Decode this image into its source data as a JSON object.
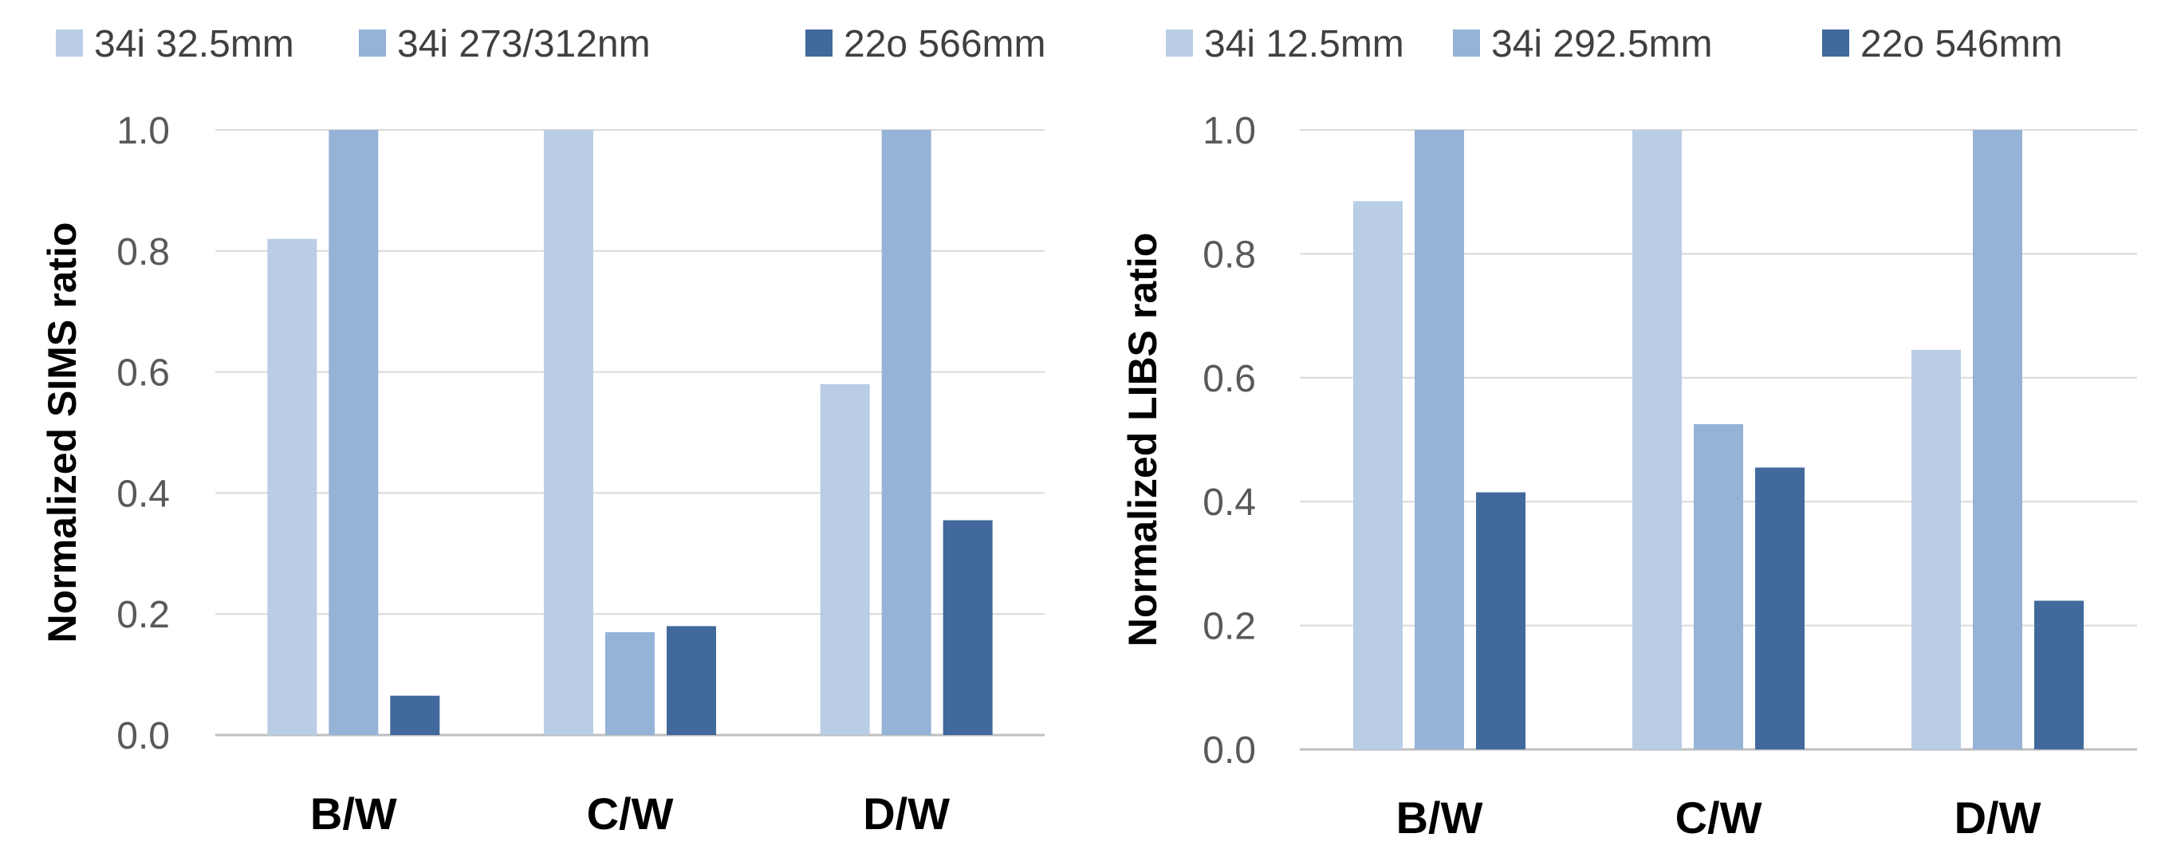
{
  "chart_data": [
    {
      "type": "bar",
      "title": "",
      "xlabel": "",
      "ylabel": "Normalized SIMS ratio",
      "categories": [
        "B/W",
        "C/W",
        "D/W"
      ],
      "ylim": [
        0,
        1.0
      ],
      "yticks": [
        "0.0",
        "0.2",
        "0.4",
        "0.6",
        "0.8",
        "1.0"
      ],
      "grid": true,
      "legend_position": "top",
      "series": [
        {
          "name": "34i 32.5mm",
          "color": "#B9CDE5",
          "values": [
            0.82,
            1.0,
            0.58
          ]
        },
        {
          "name": "34i 273/312nm",
          "color": "#95B3D7",
          "values": [
            1.0,
            0.17,
            1.0
          ]
        },
        {
          "name": "22o 566mm",
          "color": "#41699C",
          "values": [
            0.065,
            0.18,
            0.355
          ]
        }
      ]
    },
    {
      "type": "bar",
      "title": "",
      "xlabel": "",
      "ylabel": "Normalized LIBS ratio",
      "categories": [
        "B/W",
        "C/W",
        "D/W"
      ],
      "ylim": [
        0,
        1.0
      ],
      "yticks": [
        "0.0",
        "0.2",
        "0.4",
        "0.6",
        "0.8",
        "1.0"
      ],
      "grid": true,
      "legend_position": "top",
      "series": [
        {
          "name": "34i 12.5mm",
          "color": "#B9CDE5",
          "values": [
            0.885,
            1.0,
            0.645
          ]
        },
        {
          "name": "34i 292.5mm",
          "color": "#95B3D7",
          "values": [
            1.0,
            0.525,
            1.0
          ]
        },
        {
          "name": "22o 546mm",
          "color": "#41699C",
          "values": [
            0.415,
            0.455,
            0.24
          ]
        }
      ]
    }
  ]
}
